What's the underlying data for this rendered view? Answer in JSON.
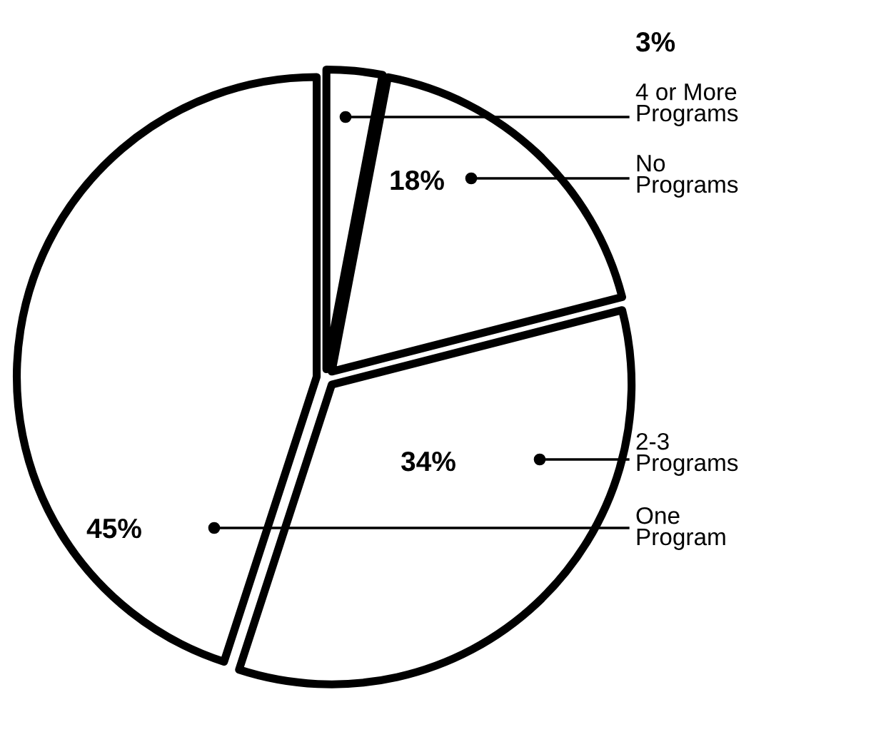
{
  "chart_data": {
    "type": "pie",
    "categories": [
      "4 or More\nPrograms",
      "No\nPrograms",
      "2-3\nPrograms",
      "One\nProgram"
    ],
    "values": [
      3,
      18,
      34,
      45
    ],
    "value_labels": [
      "3%",
      "18%",
      "34%",
      "45%"
    ],
    "colors": [
      "#ffffff",
      "#ffffff",
      "#ffffff",
      "#ffffff"
    ],
    "legend": false
  }
}
